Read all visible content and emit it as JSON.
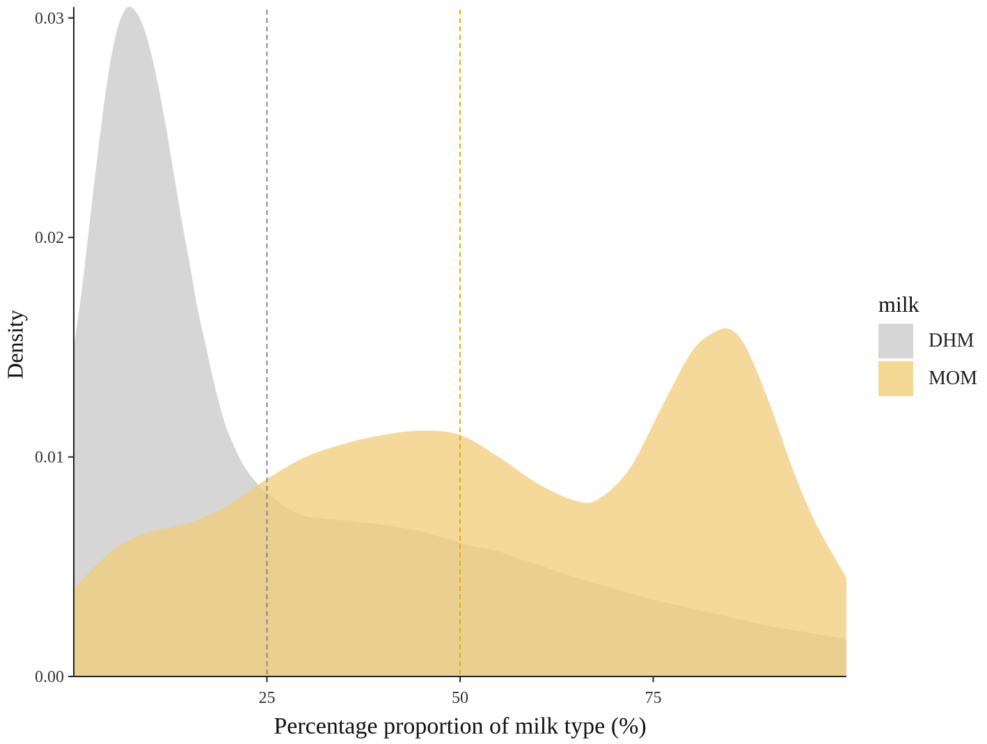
{
  "chart_data": {
    "type": "area",
    "xlabel": "Percentage proportion of milk type (%)",
    "ylabel": "Density",
    "xlim": [
      0,
      100
    ],
    "ylim": [
      0,
      0.0305
    ],
    "x_ticks": [
      25,
      50,
      75
    ],
    "y_ticks": [
      0.0,
      0.01,
      0.02,
      0.03
    ],
    "y_tick_labels": [
      "0.00",
      "0.01",
      "0.02",
      "0.03"
    ],
    "grid": false,
    "legend": {
      "title": "milk",
      "position": "right"
    },
    "series": [
      {
        "name": "DHM",
        "color": "#cccccc",
        "opacity": 0.8,
        "mean_line": 25,
        "mean_line_color": "#888888",
        "x": [
          0,
          1,
          2,
          3,
          4,
          5,
          6,
          7,
          8,
          9,
          10,
          11,
          12,
          13,
          14,
          15,
          16,
          17,
          18,
          19,
          20,
          22,
          24,
          26,
          28,
          30,
          32,
          35,
          38,
          40,
          42,
          45,
          48,
          50,
          52,
          55,
          58,
          60,
          65,
          70,
          75,
          80,
          85,
          90,
          95,
          100
        ],
        "values": [
          0.015,
          0.0175,
          0.0205,
          0.0235,
          0.0263,
          0.0285,
          0.0299,
          0.0305,
          0.0303,
          0.0296,
          0.0284,
          0.0268,
          0.0249,
          0.0228,
          0.0207,
          0.0188,
          0.0168,
          0.0152,
          0.0136,
          0.0122,
          0.0111,
          0.0096,
          0.0087,
          0.0081,
          0.0076,
          0.0073,
          0.0072,
          0.0071,
          0.007,
          0.0069,
          0.0068,
          0.0066,
          0.0063,
          0.0061,
          0.0059,
          0.0057,
          0.0053,
          0.0051,
          0.0045,
          0.004,
          0.0035,
          0.0031,
          0.0027,
          0.0023,
          0.002,
          0.0017
        ]
      },
      {
        "name": "MOM",
        "color": "#f0cc78",
        "opacity": 0.75,
        "mean_line": 50,
        "mean_line_color": "#e6a817",
        "x": [
          0,
          3,
          6,
          10,
          15,
          20,
          25,
          30,
          35,
          40,
          45,
          50,
          55,
          60,
          65,
          68,
          72,
          76,
          80,
          83,
          85,
          87,
          90,
          93,
          96,
          100
        ],
        "values": [
          0.004,
          0.0051,
          0.006,
          0.0066,
          0.007,
          0.0078,
          0.009,
          0.01,
          0.0106,
          0.011,
          0.0112,
          0.011,
          0.01,
          0.0088,
          0.008,
          0.0081,
          0.0095,
          0.0122,
          0.0148,
          0.0157,
          0.0158,
          0.015,
          0.0125,
          0.0095,
          0.007,
          0.0045
        ]
      }
    ]
  }
}
